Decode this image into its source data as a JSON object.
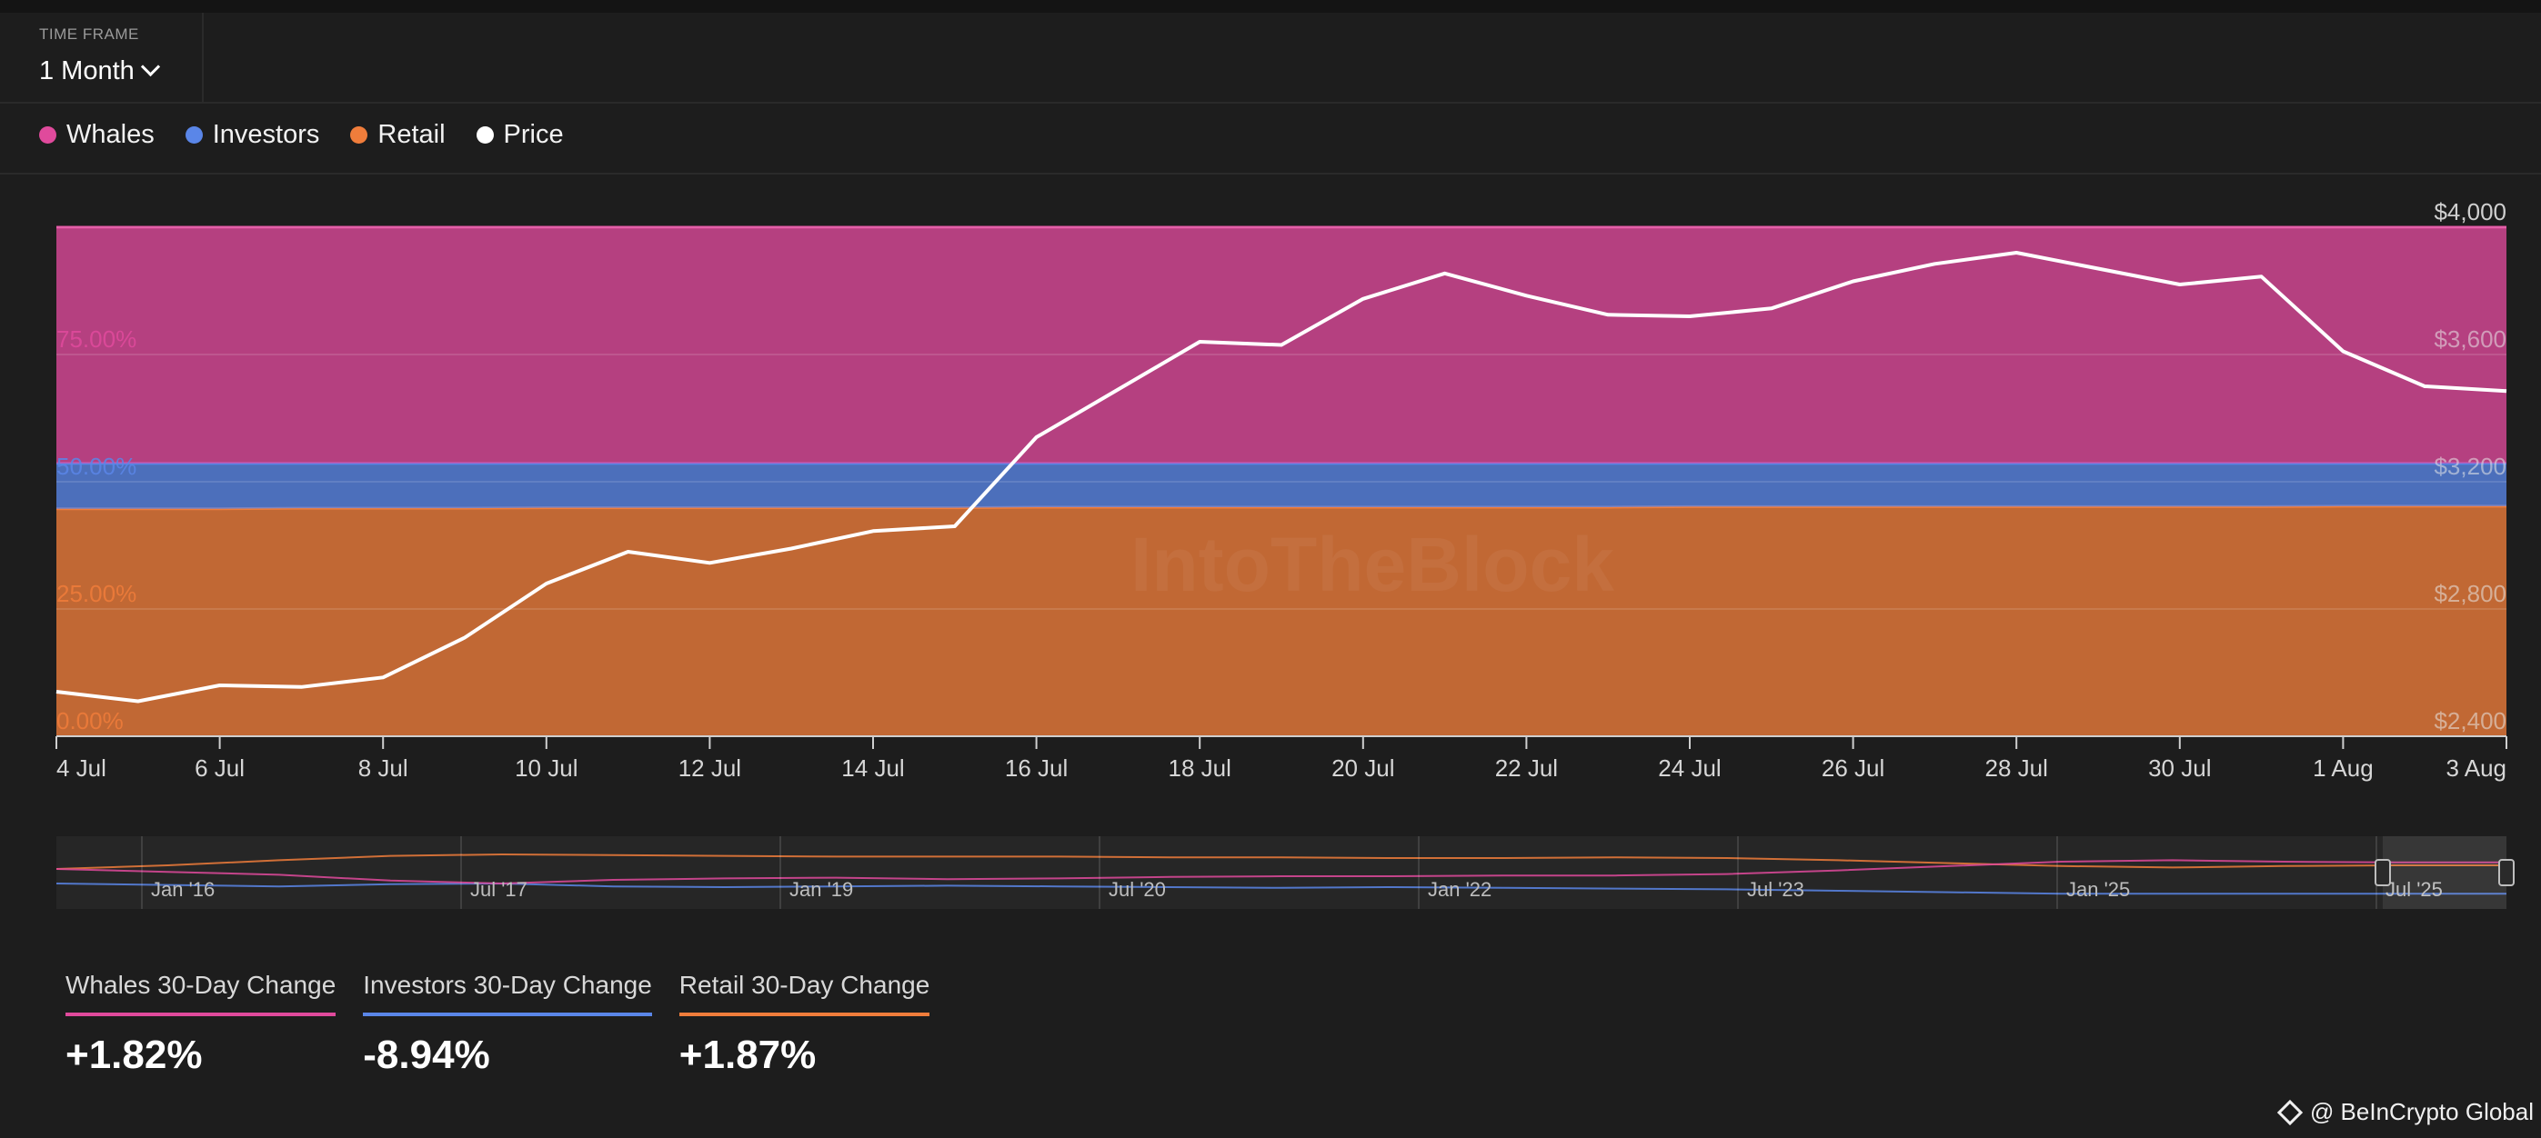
{
  "time_frame": {
    "label": "TIME FRAME",
    "value": "1 Month"
  },
  "legend": [
    {
      "name": "Whales",
      "color": "#e04a9c"
    },
    {
      "name": "Investors",
      "color": "#5a86e8"
    },
    {
      "name": "Retail",
      "color": "#f07d3b"
    },
    {
      "name": "Price",
      "color": "#ffffff"
    }
  ],
  "chart_data": {
    "type": "area",
    "stacked_percent": true,
    "categories": [
      "4 Jul",
      "5 Jul",
      "6 Jul",
      "7 Jul",
      "8 Jul",
      "9 Jul",
      "10 Jul",
      "11 Jul",
      "12 Jul",
      "13 Jul",
      "14 Jul",
      "15 Jul",
      "16 Jul",
      "17 Jul",
      "18 Jul",
      "19 Jul",
      "20 Jul",
      "21 Jul",
      "22 Jul",
      "23 Jul",
      "24 Jul",
      "25 Jul",
      "26 Jul",
      "27 Jul",
      "28 Jul",
      "29 Jul",
      "30 Jul",
      "31 Jul",
      "1 Aug",
      "2 Aug",
      "3 Aug"
    ],
    "x_tick_labels": [
      "4 Jul",
      "6 Jul",
      "8 Jul",
      "10 Jul",
      "12 Jul",
      "14 Jul",
      "16 Jul",
      "18 Jul",
      "20 Jul",
      "22 Jul",
      "24 Jul",
      "26 Jul",
      "28 Jul",
      "30 Jul",
      "1 Aug",
      "3 Aug"
    ],
    "series": [
      {
        "name": "Retail",
        "color": "#f07d3b",
        "values": [
          44.7,
          44.7,
          44.7,
          44.8,
          44.8,
          44.8,
          44.9,
          44.9,
          44.9,
          44.9,
          44.9,
          44.9,
          45.0,
          45.0,
          45.0,
          45.0,
          45.0,
          45.0,
          45.0,
          45.0,
          45.1,
          45.1,
          45.1,
          45.1,
          45.1,
          45.1,
          45.1,
          45.1,
          45.2,
          45.2,
          45.2
        ]
      },
      {
        "name": "Investors",
        "color": "#5a86e8",
        "values": [
          8.9,
          8.9,
          8.9,
          8.8,
          8.8,
          8.8,
          8.7,
          8.7,
          8.7,
          8.7,
          8.7,
          8.7,
          8.6,
          8.6,
          8.6,
          8.6,
          8.6,
          8.6,
          8.6,
          8.6,
          8.5,
          8.5,
          8.5,
          8.5,
          8.5,
          8.5,
          8.5,
          8.5,
          8.4,
          8.4,
          8.4
        ]
      },
      {
        "name": "Whales",
        "color": "#e04a9c",
        "values": [
          46.4,
          46.4,
          46.4,
          46.4,
          46.4,
          46.4,
          46.4,
          46.4,
          46.4,
          46.4,
          46.4,
          46.4,
          46.4,
          46.4,
          46.4,
          46.4,
          46.4,
          46.4,
          46.4,
          46.4,
          46.4,
          46.4,
          46.4,
          46.4,
          46.4,
          46.4,
          46.4,
          46.4,
          46.4,
          46.4,
          46.4
        ]
      }
    ],
    "price": {
      "name": "Price",
      "color": "#ffffff",
      "values": [
        2540,
        2510,
        2560,
        2555,
        2585,
        2710,
        2880,
        2980,
        2945,
        2990,
        3045,
        3060,
        3340,
        3490,
        3640,
        3630,
        3775,
        3855,
        3785,
        3725,
        3720,
        3745,
        3830,
        3885,
        3920,
        3870,
        3820,
        3845,
        3610,
        3500,
        3485
      ]
    },
    "y_left": {
      "ticks": [
        "0.00%",
        "25.00%",
        "50.00%",
        "75.00%"
      ],
      "range": [
        0,
        100
      ]
    },
    "y_right": {
      "ticks": [
        "$2,400",
        "$2,800",
        "$3,200",
        "$3,600",
        "$4,000"
      ],
      "range": [
        2400,
        4000
      ]
    },
    "grid": true,
    "watermark": "IntoTheBlock",
    "navigator": {
      "labels": [
        "Jan '16",
        "Jul '17",
        "Jan '19",
        "Jul '20",
        "Jan '22",
        "Jul '23",
        "Jan '25",
        "Jul '25"
      ],
      "retail": [
        40,
        45,
        52,
        58,
        60,
        59,
        58,
        57,
        57,
        57,
        56,
        56,
        55,
        55,
        56,
        55,
        52,
        48,
        44,
        42,
        44,
        45,
        45
      ],
      "investors": [
        20,
        18,
        16,
        19,
        20,
        16,
        15,
        16,
        17,
        16,
        15,
        14,
        15,
        14,
        13,
        12,
        10,
        8,
        6,
        6,
        6,
        6,
        6
      ],
      "whales": [
        40,
        36,
        32,
        24,
        20,
        25,
        27,
        28,
        26,
        27,
        29,
        30,
        30,
        31,
        31,
        33,
        38,
        44,
        50,
        52,
        50,
        49,
        49
      ]
    }
  },
  "stats": [
    {
      "title": "Whales 30-Day Change",
      "value": "+1.82%",
      "color": "#e04a9c"
    },
    {
      "title": "Investors 30-Day Change",
      "value": "-8.94%",
      "color": "#5a86e8"
    },
    {
      "title": "Retail 30-Day Change",
      "value": "+1.87%",
      "color": "#f07d3b"
    }
  ],
  "credit": "@ BeInCrypto Global"
}
